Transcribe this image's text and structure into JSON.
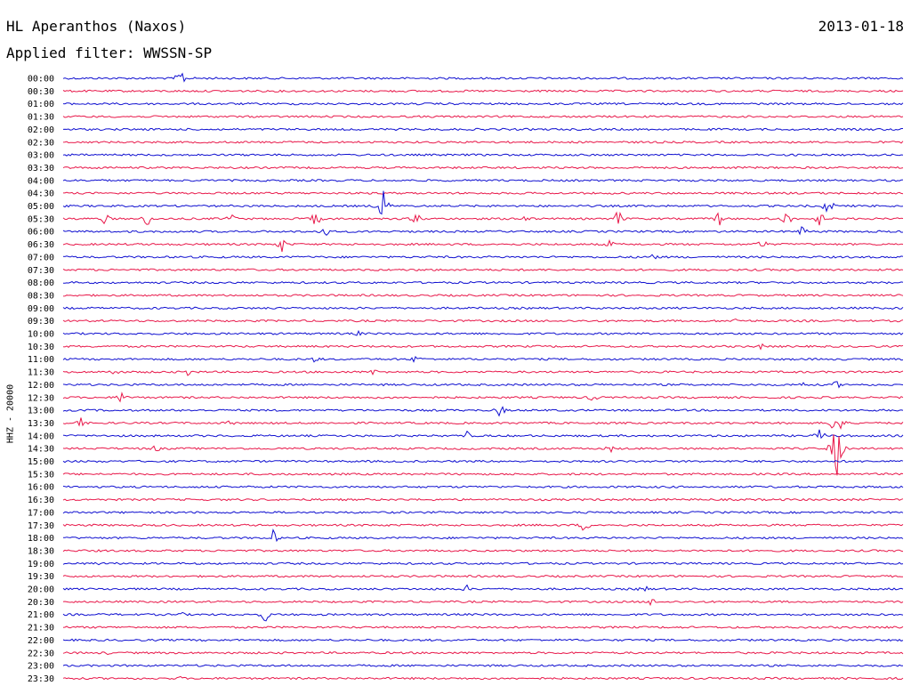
{
  "header": {
    "station": "HL Aperanthos (Naxos)",
    "date": "2013-01-18",
    "filter": "Applied filter: WWSSN-SP"
  },
  "chart_data": {
    "type": "line",
    "ylabel": "HHZ - 20000",
    "colors": [
      "#1010d0",
      "#e8184a"
    ],
    "rows": [
      {
        "time": "00:00",
        "events": [
          {
            "x": 0.14,
            "amp": 14
          }
        ]
      },
      {
        "time": "00:30",
        "events": []
      },
      {
        "time": "01:00",
        "events": []
      },
      {
        "time": "01:30",
        "events": []
      },
      {
        "time": "02:00",
        "events": []
      },
      {
        "time": "02:30",
        "events": []
      },
      {
        "time": "03:00",
        "events": []
      },
      {
        "time": "03:30",
        "events": []
      },
      {
        "time": "04:00",
        "events": []
      },
      {
        "time": "04:30",
        "events": []
      },
      {
        "time": "05:00",
        "events": [
          {
            "x": 0.38,
            "amp": 24
          },
          {
            "x": 0.91,
            "amp": 14
          }
        ]
      },
      {
        "time": "05:30",
        "events": [
          {
            "x": 0.05,
            "amp": 8
          },
          {
            "x": 0.1,
            "amp": 10
          },
          {
            "x": 0.2,
            "amp": 8
          },
          {
            "x": 0.3,
            "amp": 12
          },
          {
            "x": 0.42,
            "amp": 10
          },
          {
            "x": 0.55,
            "amp": 10
          },
          {
            "x": 0.66,
            "amp": 12
          },
          {
            "x": 0.78,
            "amp": 10
          },
          {
            "x": 0.86,
            "amp": 12
          },
          {
            "x": 0.9,
            "amp": 10
          }
        ]
      },
      {
        "time": "06:00",
        "events": [
          {
            "x": 0.31,
            "amp": 10
          },
          {
            "x": 0.88,
            "amp": 8
          }
        ]
      },
      {
        "time": "06:30",
        "events": [
          {
            "x": 0.26,
            "amp": 10
          },
          {
            "x": 0.65,
            "amp": 6
          },
          {
            "x": 0.83,
            "amp": 10
          }
        ]
      },
      {
        "time": "07:00",
        "events": [
          {
            "x": 0.7,
            "amp": 8
          }
        ]
      },
      {
        "time": "07:30",
        "events": []
      },
      {
        "time": "08:00",
        "events": []
      },
      {
        "time": "08:30",
        "events": []
      },
      {
        "time": "09:00",
        "events": []
      },
      {
        "time": "09:30",
        "events": [
          {
            "x": 0.8,
            "amp": 4
          }
        ]
      },
      {
        "time": "10:00",
        "events": [
          {
            "x": 0.35,
            "amp": 5
          }
        ]
      },
      {
        "time": "10:30",
        "events": [
          {
            "x": 0.83,
            "amp": 4
          }
        ]
      },
      {
        "time": "11:00",
        "events": [
          {
            "x": 0.3,
            "amp": 5
          },
          {
            "x": 0.42,
            "amp": 7
          }
        ]
      },
      {
        "time": "11:30",
        "events": [
          {
            "x": 0.06,
            "amp": 6
          },
          {
            "x": 0.15,
            "amp": 7
          },
          {
            "x": 0.37,
            "amp": 5
          }
        ]
      },
      {
        "time": "12:00",
        "events": [
          {
            "x": 0.88,
            "amp": 5
          },
          {
            "x": 0.92,
            "amp": 6
          }
        ]
      },
      {
        "time": "12:30",
        "events": [
          {
            "x": 0.07,
            "amp": 10
          },
          {
            "x": 0.63,
            "amp": 7
          }
        ]
      },
      {
        "time": "13:00",
        "events": [
          {
            "x": 0.52,
            "amp": 9
          }
        ]
      },
      {
        "time": "13:30",
        "events": [
          {
            "x": 0.02,
            "amp": 8
          },
          {
            "x": 0.2,
            "amp": 5
          },
          {
            "x": 0.92,
            "amp": 30
          }
        ]
      },
      {
        "time": "14:00",
        "events": [
          {
            "x": 0.48,
            "amp": 6
          },
          {
            "x": 0.9,
            "amp": 10
          }
        ]
      },
      {
        "time": "14:30",
        "events": [
          {
            "x": 0.11,
            "amp": 6
          },
          {
            "x": 0.65,
            "amp": 6
          },
          {
            "x": 0.92,
            "amp": 40
          }
        ]
      },
      {
        "time": "15:00",
        "events": []
      },
      {
        "time": "15:30",
        "events": []
      },
      {
        "time": "16:00",
        "events": []
      },
      {
        "time": "16:30",
        "events": []
      },
      {
        "time": "17:00",
        "events": []
      },
      {
        "time": "17:30",
        "events": [
          {
            "x": 0.62,
            "amp": 10
          }
        ]
      },
      {
        "time": "18:00",
        "events": [
          {
            "x": 0.25,
            "amp": 10
          }
        ]
      },
      {
        "time": "18:30",
        "events": []
      },
      {
        "time": "19:00",
        "events": [
          {
            "x": 0.04,
            "amp": 3
          }
        ]
      },
      {
        "time": "19:30",
        "events": []
      },
      {
        "time": "20:00",
        "events": [
          {
            "x": 0.48,
            "amp": 5
          },
          {
            "x": 0.69,
            "amp": 8
          }
        ]
      },
      {
        "time": "20:30",
        "events": [
          {
            "x": 0.7,
            "amp": 6
          }
        ]
      },
      {
        "time": "21:00",
        "events": [
          {
            "x": 0.14,
            "amp": 4
          },
          {
            "x": 0.24,
            "amp": 10
          }
        ]
      },
      {
        "time": "21:30",
        "events": []
      },
      {
        "time": "22:00",
        "events": []
      },
      {
        "time": "22:30",
        "events": [
          {
            "x": 0.05,
            "amp": 4
          }
        ]
      },
      {
        "time": "23:00",
        "events": []
      },
      {
        "time": "23:30",
        "events": [
          {
            "x": 0.14,
            "amp": 3
          }
        ]
      }
    ]
  }
}
